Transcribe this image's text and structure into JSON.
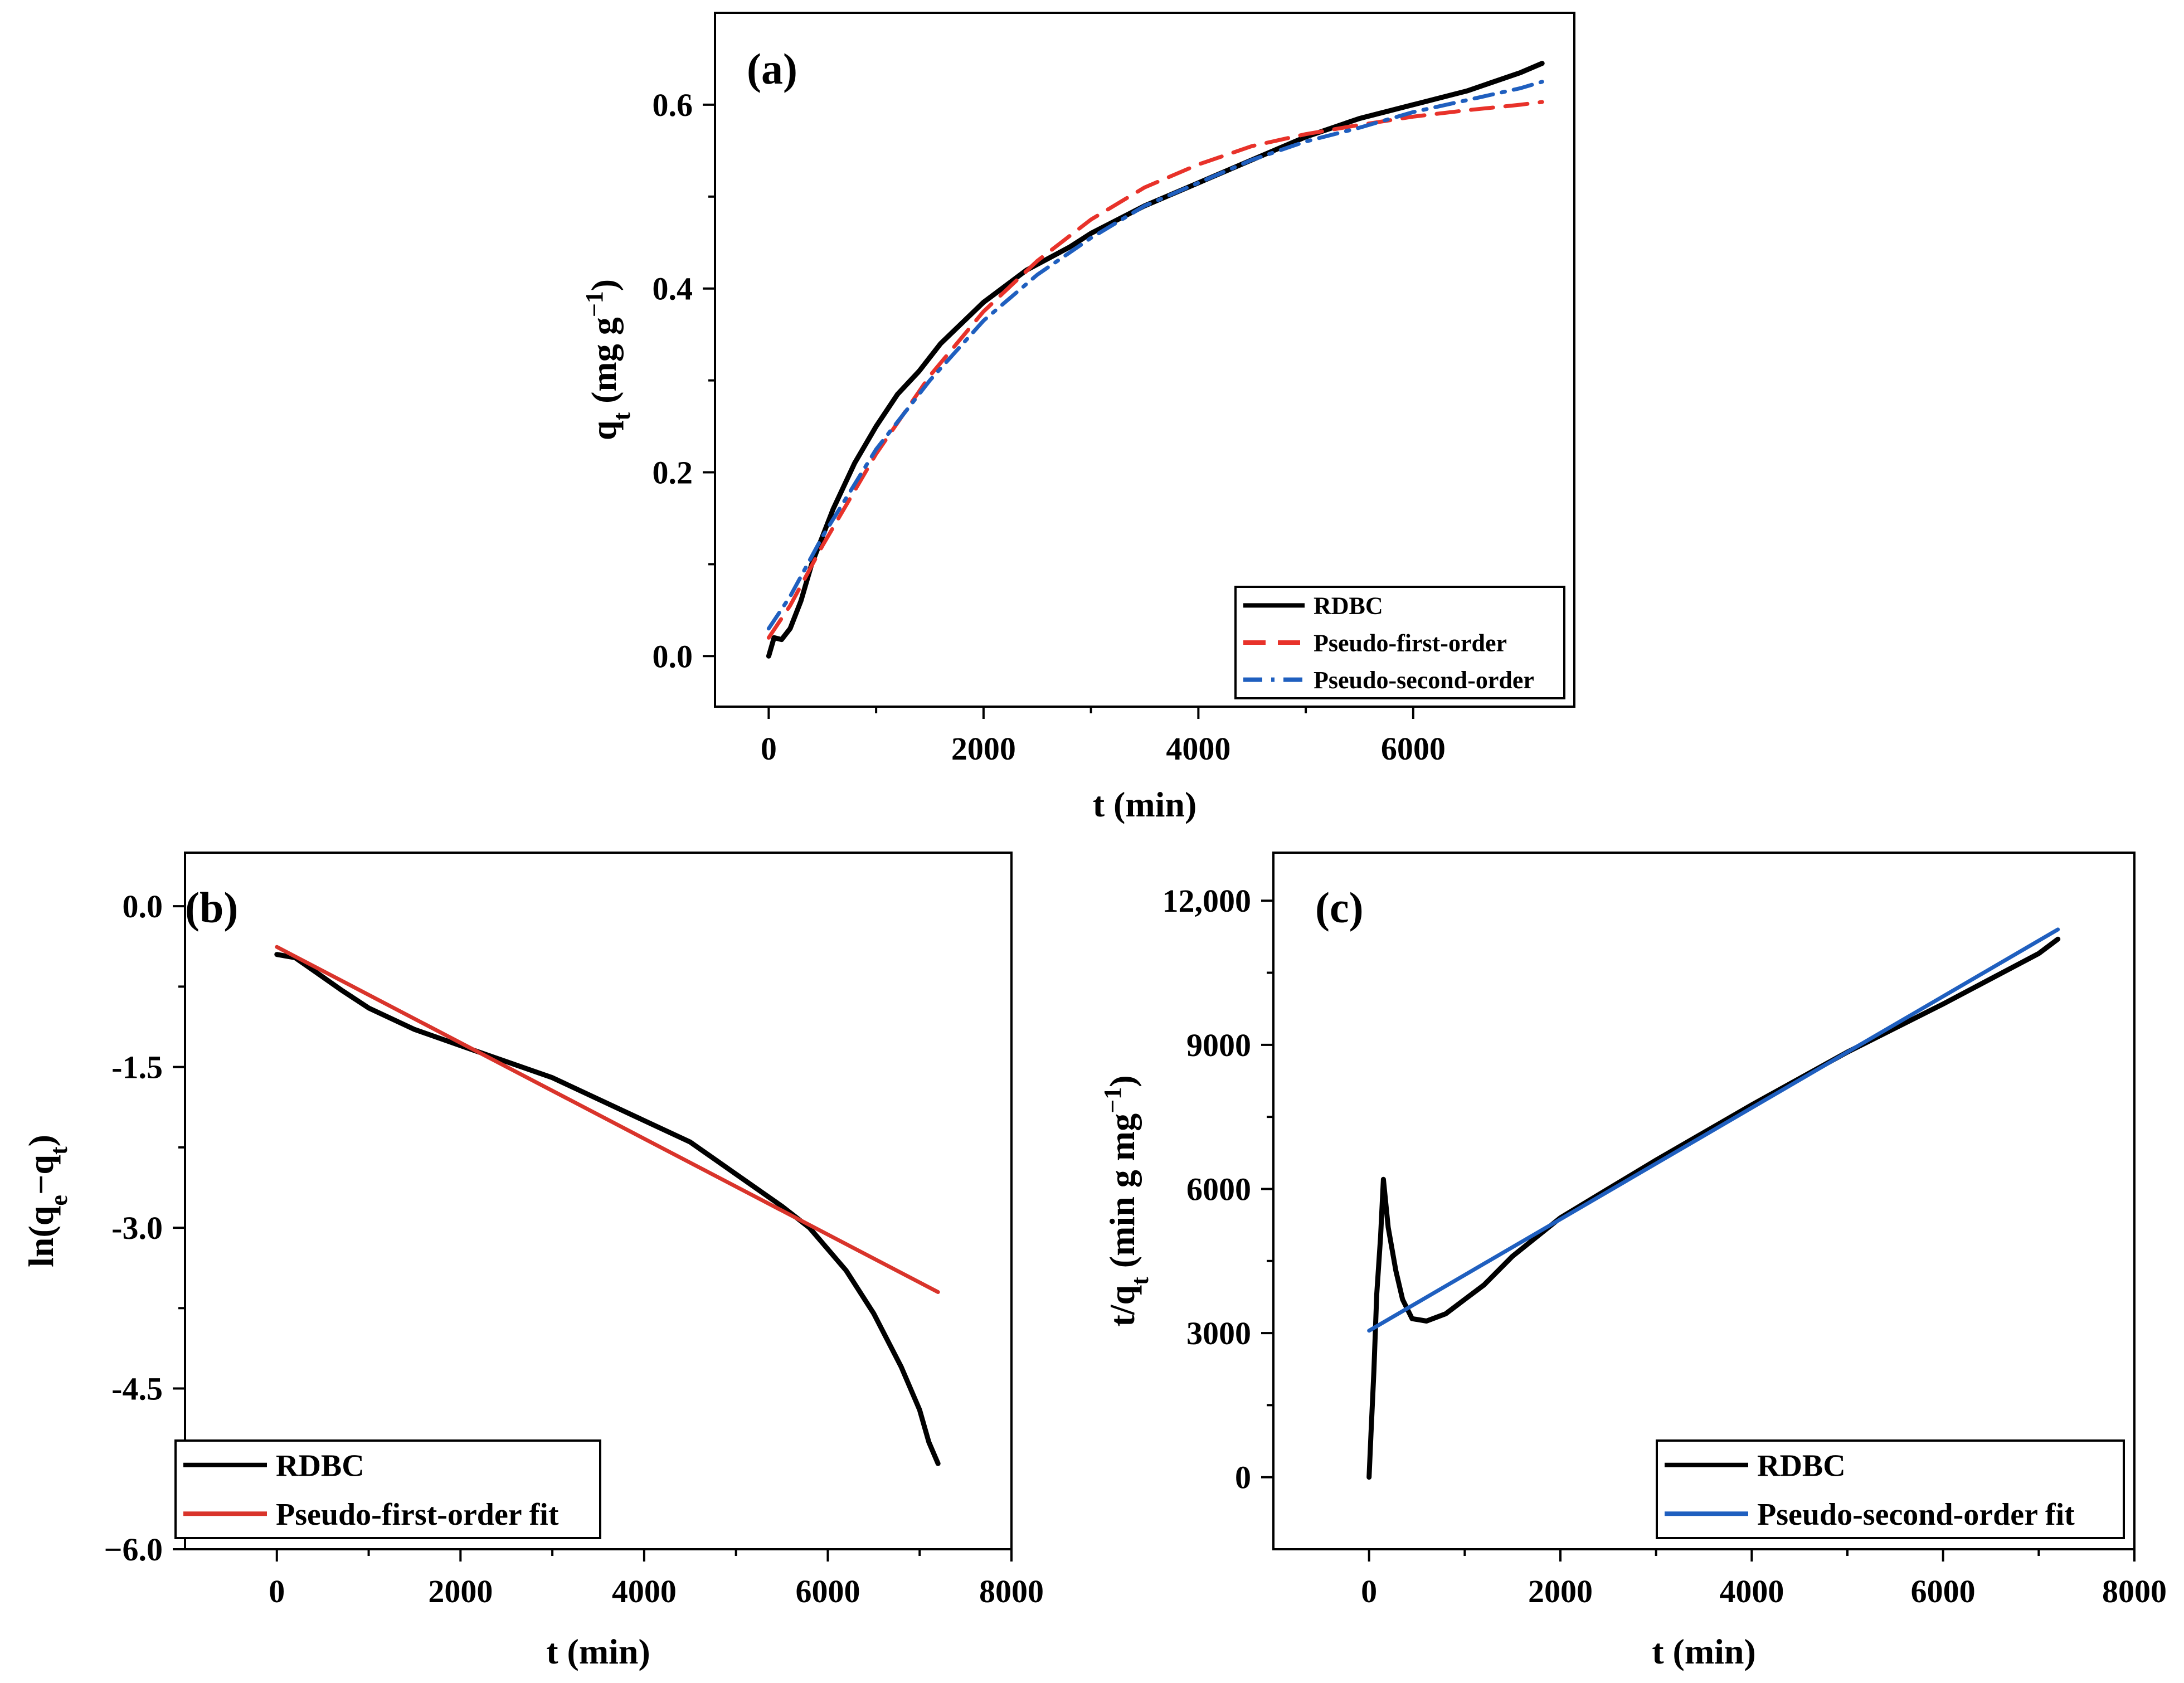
{
  "chart_data": [
    {
      "id": "a",
      "type": "line",
      "panel_label": "(a)",
      "xlabel": "t (min)",
      "ylabel": {
        "pre": "q",
        "sub": "t",
        "post": " (mg g",
        "sup": "−1",
        "end": ")"
      },
      "xlim": [
        -500,
        7500
      ],
      "ylim": [
        -0.055,
        0.7
      ],
      "xticks": [
        0,
        2000,
        4000,
        6000
      ],
      "xtick_labels": [
        "0",
        "2000",
        "4000",
        "6000"
      ],
      "yticks": [
        0.0,
        0.2,
        0.4,
        0.6
      ],
      "ytick_labels": [
        "0.0",
        "0.2",
        "0.4",
        "0.6"
      ],
      "legend_position": "bottom-right",
      "series": [
        {
          "name": "RDBC",
          "color": "#000000",
          "dash": "solid",
          "x": [
            0,
            50,
            120,
            200,
            300,
            400,
            500,
            600,
            800,
            1000,
            1200,
            1400,
            1600,
            2000,
            2400,
            2800,
            3000,
            3500,
            4000,
            4500,
            5000,
            5500,
            6000,
            6500,
            7000,
            7200
          ],
          "y": [
            0.0,
            0.02,
            0.018,
            0.03,
            0.06,
            0.1,
            0.13,
            0.16,
            0.21,
            0.25,
            0.285,
            0.31,
            0.34,
            0.385,
            0.42,
            0.445,
            0.46,
            0.49,
            0.515,
            0.54,
            0.565,
            0.585,
            0.6,
            0.615,
            0.635,
            0.645
          ]
        },
        {
          "name": "Pseudo-first-order",
          "color": "#E8322A",
          "dash": "dashed",
          "x": [
            0,
            200,
            500,
            1000,
            1500,
            2000,
            2500,
            3000,
            3500,
            4000,
            4500,
            5000,
            5500,
            6000,
            6500,
            7000,
            7200
          ],
          "y": [
            0.02,
            0.055,
            0.12,
            0.22,
            0.305,
            0.375,
            0.43,
            0.475,
            0.51,
            0.535,
            0.555,
            0.568,
            0.578,
            0.587,
            0.594,
            0.6,
            0.603
          ]
        },
        {
          "name": "Pseudo-second-order",
          "color": "#1F5FBF",
          "dash": "dashdot",
          "x": [
            0,
            200,
            500,
            1000,
            1500,
            2000,
            2500,
            3000,
            3500,
            4000,
            4500,
            5000,
            5500,
            6000,
            6500,
            7000,
            7200
          ],
          "y": [
            0.03,
            0.065,
            0.13,
            0.225,
            0.3,
            0.365,
            0.415,
            0.455,
            0.49,
            0.515,
            0.54,
            0.56,
            0.575,
            0.592,
            0.605,
            0.618,
            0.625
          ]
        }
      ]
    },
    {
      "id": "b",
      "type": "line",
      "panel_label": "(b)",
      "xlabel": "t (min)",
      "ylabel": {
        "pre": "ln(q",
        "sub": "e",
        "post": "−q",
        "sub2": "t",
        "end": ")"
      },
      "xlim": [
        -1000,
        8000
      ],
      "ylim": [
        -6.0,
        0.5
      ],
      "xticks": [
        0,
        2000,
        4000,
        6000,
        8000
      ],
      "xtick_labels": [
        "0",
        "2000",
        "4000",
        "6000",
        "8000"
      ],
      "yticks": [
        0.0,
        -1.5,
        -3.0,
        -4.5,
        -6.0
      ],
      "ytick_labels": [
        "0.0",
        "-1.5",
        "-3.0",
        "-4.5",
        "−6.0"
      ],
      "legend_position": "bottom-left",
      "series": [
        {
          "name": "RDBC",
          "color": "#000000",
          "dash": "solid",
          "x": [
            0,
            200,
            400,
            700,
            1000,
            1500,
            2000,
            2500,
            3000,
            3500,
            4000,
            4500,
            5000,
            5500,
            5800,
            6200,
            6500,
            6800,
            7000,
            7100,
            7200
          ],
          "y": [
            -0.45,
            -0.48,
            -0.6,
            -0.78,
            -0.95,
            -1.15,
            -1.3,
            -1.45,
            -1.6,
            -1.8,
            -2.0,
            -2.2,
            -2.5,
            -2.8,
            -3.0,
            -3.4,
            -3.8,
            -4.3,
            -4.7,
            -5.0,
            -5.2
          ]
        },
        {
          "name": "Pseudo-first-order fit",
          "color": "#D9342B",
          "dash": "solid",
          "x": [
            0,
            7200
          ],
          "y": [
            -0.38,
            -3.6
          ]
        }
      ]
    },
    {
      "id": "c",
      "type": "line",
      "panel_label": "(c)",
      "xlabel": "t (min)",
      "ylabel": {
        "pre": "t/q",
        "sub": "t",
        "post": " (min g mg",
        "sup": "−1",
        "end": ")"
      },
      "xlim": [
        -1000,
        8000
      ],
      "ylim": [
        -1500,
        13000
      ],
      "xticks": [
        0,
        2000,
        4000,
        6000,
        8000
      ],
      "xtick_labels": [
        "0",
        "2000",
        "4000",
        "6000",
        "8000"
      ],
      "yticks": [
        0,
        3000,
        6000,
        9000,
        12000
      ],
      "ytick_labels": [
        "0",
        "3000",
        "6000",
        "9000",
        "12,000"
      ],
      "legend_position": "bottom-right",
      "series": [
        {
          "name": "RDBC",
          "color": "#000000",
          "dash": "solid",
          "x": [
            0,
            20,
            50,
            80,
            120,
            150,
            200,
            280,
            350,
            450,
            600,
            800,
            1000,
            1200,
            1500,
            2000,
            2500,
            3000,
            4000,
            5000,
            6000,
            7000,
            7200
          ],
          "y": [
            0,
            900,
            2200,
            3800,
            5000,
            6200,
            5200,
            4300,
            3700,
            3300,
            3250,
            3400,
            3700,
            4000,
            4600,
            5400,
            6000,
            6600,
            7750,
            8850,
            9850,
            10900,
            11200
          ]
        },
        {
          "name": "Pseudo-second-order fit",
          "color": "#1F5FBF",
          "dash": "solid",
          "x": [
            0,
            7200
          ],
          "y": [
            3050,
            11400
          ]
        }
      ]
    }
  ]
}
